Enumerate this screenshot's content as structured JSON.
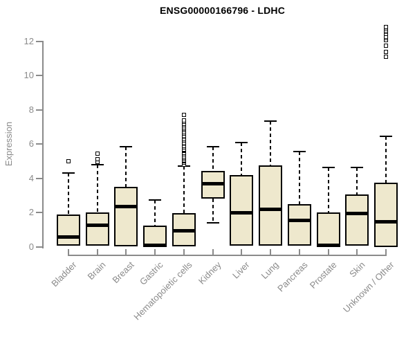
{
  "colors": {
    "box_fill": "#EEE8CD",
    "box_stroke": "#000000",
    "median": "#000000",
    "axis": "#8A8A8A",
    "title": "#000000",
    "background": "#FFFFFF"
  },
  "chart_data": {
    "type": "boxplot",
    "title": "ENSG00000166796 - LDHC",
    "xlabel": "",
    "ylabel": "Expression",
    "ylim": [
      0,
      12
    ],
    "yticks": [
      0,
      2,
      4,
      6,
      8,
      10,
      12
    ],
    "grid": false,
    "legend": false,
    "categories": [
      "Bladder",
      "Brain",
      "Breast",
      "Gastric",
      "Hematopoietic cells",
      "Kidney",
      "Liver",
      "Lung",
      "Pancreas",
      "Prostate",
      "Skin",
      "Unknown / Other"
    ],
    "series": [
      {
        "name": "Bladder",
        "q1": 0.05,
        "median": 0.55,
        "q3": 1.9,
        "whisker_low": null,
        "whisker_high": 4.3,
        "outliers": [
          5.0
        ]
      },
      {
        "name": "Brain",
        "q1": 0.05,
        "median": 1.25,
        "q3": 2.0,
        "whisker_low": null,
        "whisker_high": 4.8,
        "outliers": [
          4.95,
          5.1,
          5.45
        ]
      },
      {
        "name": "Breast",
        "q1": 0.0,
        "median": 2.35,
        "q3": 3.5,
        "whisker_low": null,
        "whisker_high": 5.85,
        "outliers": []
      },
      {
        "name": "Gastric",
        "q1": 0.0,
        "median": 0.1,
        "q3": 1.25,
        "whisker_low": null,
        "whisker_high": 2.75,
        "outliers": []
      },
      {
        "name": "Hematopoietic cells",
        "q1": 0.0,
        "median": 0.95,
        "q3": 1.95,
        "whisker_low": null,
        "whisker_high": 4.7,
        "outliers": [
          4.8,
          4.9,
          5.0,
          5.05,
          5.1,
          5.2,
          5.3,
          5.4,
          5.5,
          5.6,
          5.65,
          5.7,
          5.8,
          5.9,
          6.0,
          6.1,
          6.2,
          6.3,
          6.4,
          6.5,
          6.6,
          6.7,
          6.8,
          6.9,
          7.0,
          7.1,
          7.2,
          7.3,
          7.4,
          7.7
        ]
      },
      {
        "name": "Kidney",
        "q1": 2.8,
        "median": 3.7,
        "q3": 4.45,
        "whisker_low": 1.4,
        "whisker_high": 5.85,
        "outliers": []
      },
      {
        "name": "Liver",
        "q1": 0.05,
        "median": 2.0,
        "q3": 4.2,
        "whisker_low": null,
        "whisker_high": 6.1,
        "outliers": []
      },
      {
        "name": "Lung",
        "q1": 0.05,
        "median": 2.2,
        "q3": 4.75,
        "whisker_low": null,
        "whisker_high": 7.35,
        "outliers": []
      },
      {
        "name": "Pancreas",
        "q1": 0.05,
        "median": 1.55,
        "q3": 2.5,
        "whisker_low": null,
        "whisker_high": 5.55,
        "outliers": []
      },
      {
        "name": "Prostate",
        "q1": 0.0,
        "median": 0.1,
        "q3": 2.0,
        "whisker_low": null,
        "whisker_high": 4.65,
        "outliers": []
      },
      {
        "name": "Skin",
        "q1": 0.05,
        "median": 1.95,
        "q3": 3.05,
        "whisker_low": null,
        "whisker_high": 4.65,
        "outliers": []
      },
      {
        "name": "Unknown / Other",
        "q1": 0.0,
        "median": 1.45,
        "q3": 3.75,
        "whisker_low": null,
        "whisker_high": 6.45,
        "outliers": [
          11.1,
          11.4,
          11.75,
          12.1,
          12.2,
          12.3,
          12.45,
          12.55,
          12.65,
          12.75,
          12.85
        ]
      }
    ]
  }
}
